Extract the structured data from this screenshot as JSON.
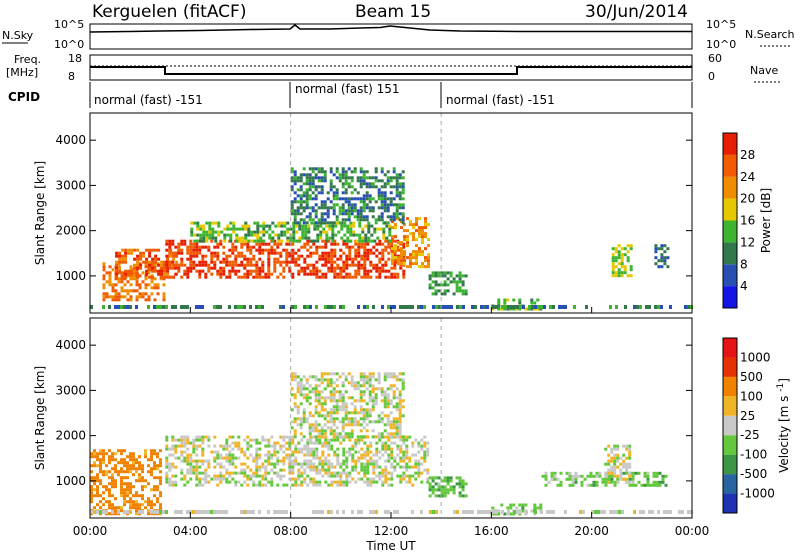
{
  "header": {
    "station": "Kerguelen (fitACF)",
    "beam": "Beam 15",
    "date": "30/Jun/2014"
  },
  "strip": {
    "nsky_label": "N.Sky",
    "nsky_ticks": [
      "10^5",
      "10^0"
    ],
    "nsearch_label": "N.Search",
    "nsearch_ticks": [
      "10^5",
      "10^0"
    ],
    "freq_label_1": "Freq.",
    "freq_label_2": "[MHz]",
    "freq_ticks": [
      "18",
      "8"
    ],
    "nave_label": "Nave",
    "nave_ticks": [
      "60",
      "0"
    ],
    "cpid_label": "CPID",
    "cpid_segments": [
      "normal (fast) -151",
      "normal (fast) 151",
      "normal (fast) -151"
    ]
  },
  "chart_data": [
    {
      "type": "heatmap",
      "panel": "power",
      "ylabel": "Slant Range [km]",
      "xlabel": "Time UT",
      "x_ticks": [
        "00:00",
        "04:00",
        "08:00",
        "12:00",
        "16:00",
        "20:00",
        "00:00"
      ],
      "y_ticks": [
        1000,
        2000,
        3000,
        4000
      ],
      "ylim": [
        180,
        4600
      ],
      "xlim_hours": [
        0,
        24
      ],
      "colorbar": {
        "label": "Power [dB]",
        "ticks": [
          4,
          8,
          12,
          16,
          20,
          24,
          28
        ],
        "colors": [
          "#1414e6",
          "#2850b4",
          "#32784b",
          "#3cb432",
          "#e6c800",
          "#f08c00",
          "#f05a00",
          "#e61e00"
        ]
      },
      "regions": [
        {
          "t0": 0.5,
          "t1": 3.0,
          "r0": 500,
          "r1": 1300,
          "level": 24
        },
        {
          "t0": 1.0,
          "t1": 3.5,
          "r0": 1000,
          "r1": 1600,
          "level": 26
        },
        {
          "t0": 3.0,
          "t1": 12.5,
          "r0": 1000,
          "r1": 1800,
          "level": 28
        },
        {
          "t0": 4.0,
          "t1": 12.0,
          "r0": 1800,
          "r1": 2200,
          "level": 14
        },
        {
          "t0": 12.0,
          "t1": 13.5,
          "r0": 1200,
          "r1": 2300,
          "level": 22
        },
        {
          "t0": 8.0,
          "t1": 12.5,
          "r0": 2200,
          "r1": 3400,
          "level": 10
        },
        {
          "t0": 13.5,
          "t1": 15.0,
          "r0": 600,
          "r1": 1100,
          "level": 12
        },
        {
          "t0": 16.0,
          "t1": 18.0,
          "r0": 300,
          "r1": 500,
          "level": 14
        },
        {
          "t0": 20.8,
          "t1": 21.6,
          "r0": 1000,
          "r1": 1700,
          "level": 16
        },
        {
          "t0": 22.5,
          "t1": 23.0,
          "r0": 1200,
          "r1": 1700,
          "level": 8
        }
      ]
    },
    {
      "type": "heatmap",
      "panel": "velocity",
      "ylabel": "Slant Range [km]",
      "xlabel": "Time UT",
      "x_ticks": [
        "00:00",
        "04:00",
        "08:00",
        "12:00",
        "16:00",
        "20:00",
        "00:00"
      ],
      "y_ticks": [
        1000,
        2000,
        3000,
        4000
      ],
      "ylim": [
        180,
        4600
      ],
      "xlim_hours": [
        0,
        24
      ],
      "colorbar": {
        "label": "Velocity [m s",
        "label_sup": "-1",
        "label_end": "]",
        "ticks": [
          "1000",
          "500",
          "100",
          "25",
          "-25",
          "-100",
          "-500",
          "-1000"
        ],
        "colors": [
          "#1e32b4",
          "#2864a0",
          "#3c9646",
          "#64c83c",
          "#c8c8c8",
          "#f0b428",
          "#f08200",
          "#e63200",
          "#e61414"
        ]
      },
      "regions": [
        {
          "t0": 0.0,
          "t1": 2.8,
          "r0": 300,
          "r1": 1700,
          "level": -150
        },
        {
          "t0": 3.0,
          "t1": 13.5,
          "r0": 900,
          "r1": 2000,
          "level": 0
        },
        {
          "t0": 8.0,
          "t1": 12.5,
          "r0": 2000,
          "r1": 3400,
          "level": 0
        },
        {
          "t0": 13.5,
          "t1": 15.0,
          "r0": 700,
          "r1": 1100,
          "level": 80
        },
        {
          "t0": 16.0,
          "t1": 18.0,
          "r0": 300,
          "r1": 500,
          "level": 60
        },
        {
          "t0": 18.0,
          "t1": 23.0,
          "r0": 900,
          "r1": 1200,
          "level": 60
        },
        {
          "t0": 20.5,
          "t1": 21.5,
          "r0": 1000,
          "r1": 1800,
          "level": 0
        }
      ]
    }
  ]
}
